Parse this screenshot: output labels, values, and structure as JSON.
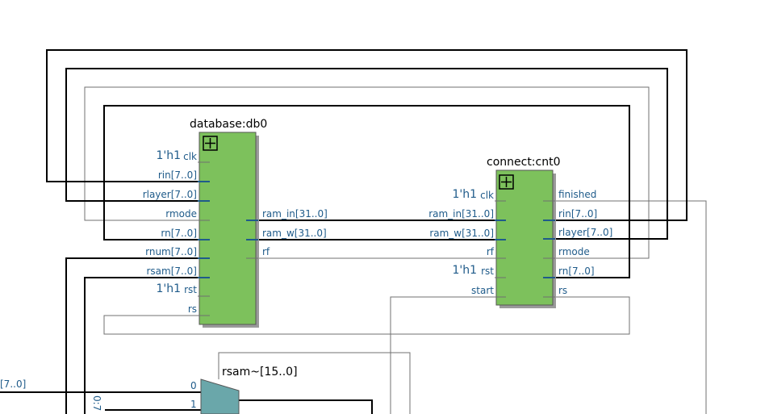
{
  "colors": {
    "block_fill": "#7dc15c",
    "block_stroke": "#555555",
    "mux_fill": "#6aa7aa",
    "port_text": "#1f5b8a",
    "bus_wire": "#000000",
    "thin_wire": "#707070",
    "pin_blue": "#1f5b8a"
  },
  "db0": {
    "title": "database:db0",
    "expand_icon": "plus-box-icon",
    "clk_const": "1'h1",
    "rst_const": "1'h1",
    "inputs": [
      "clk",
      "rin[7..0]",
      "rlayer[7..0]",
      "rmode",
      "rn[7..0]",
      "rnum[7..0]",
      "rsam[7..0]",
      "rst",
      "rs"
    ],
    "outputs": [
      "ram_in[31..0]",
      "ram_w[31..0]",
      "rf"
    ]
  },
  "cnt0": {
    "title": "connect:cnt0",
    "expand_icon": "plus-box-icon",
    "clk_const": "1'h1",
    "rst_const": "1'h1",
    "inputs": [
      "clk",
      "ram_in[31..0]",
      "ram_w[31..0]",
      "rf",
      "rst",
      "start"
    ],
    "outputs": [
      "finished",
      "rin[7..0]",
      "rlayer[7..0]",
      "rmode",
      "rn[7..0]",
      "rs"
    ]
  },
  "mux": {
    "title": "rsam~[15..0]",
    "in0": "0",
    "in1": "1",
    "slice_label": "0:7",
    "left_signal": "[7..0]"
  }
}
